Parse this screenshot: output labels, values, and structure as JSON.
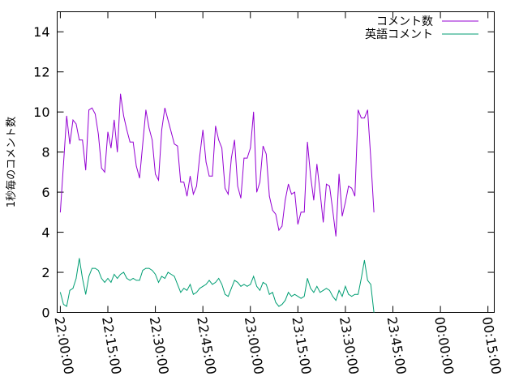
{
  "chart_data": {
    "type": "line",
    "ylabel": "1秒毎のコメント数",
    "xlabel": "",
    "ylim": [
      0,
      15
    ],
    "yticks": [
      0,
      2,
      4,
      6,
      8,
      10,
      12,
      14
    ],
    "ytick_labels": [
      "0",
      "2",
      "4",
      "6",
      "8",
      "10",
      "12",
      "14"
    ],
    "xticks": [
      0,
      15,
      30,
      45,
      60,
      75,
      90,
      105,
      120,
      135
    ],
    "xtick_labels": [
      "22:00:00",
      "22:15:00",
      "22:30:00",
      "22:45:00",
      "23:00:00",
      "23:15:00",
      "23:30:00",
      "23:45:00",
      "00:00:00",
      "00:15:00"
    ],
    "xlim": [
      -1,
      137
    ],
    "x_unit_note": "minutes",
    "legend_position": "top-right",
    "series": [
      {
        "name": "コメント数",
        "color": "#9400d3",
        "x_start": 0,
        "x_step": 1,
        "values": [
          5.0,
          7.4,
          9.8,
          8.4,
          9.6,
          9.4,
          8.6,
          8.6,
          7.1,
          10.1,
          10.2,
          9.9,
          8.9,
          7.2,
          7.0,
          9.0,
          8.2,
          9.6,
          8.0,
          10.9,
          9.8,
          9.1,
          8.5,
          8.5,
          7.3,
          6.7,
          8.4,
          10.1,
          9.2,
          8.6,
          6.9,
          6.6,
          9.1,
          10.2,
          9.6,
          9.0,
          8.4,
          8.3,
          6.5,
          6.5,
          5.8,
          6.8,
          5.9,
          6.3,
          7.8,
          9.1,
          7.5,
          6.8,
          6.8,
          9.3,
          8.6,
          8.2,
          6.2,
          5.9,
          7.7,
          8.6,
          6.3,
          5.7,
          7.7,
          7.7,
          8.2,
          10.0,
          6.0,
          6.5,
          8.3,
          7.9,
          5.8,
          5.1,
          4.9,
          4.1,
          4.3,
          5.6,
          6.4,
          5.9,
          6.0,
          4.4,
          5.0,
          5.0,
          8.5,
          6.8,
          5.6,
          7.4,
          6.0,
          4.5,
          6.4,
          6.3,
          5.1,
          3.8,
          6.9,
          4.8,
          5.5,
          6.3,
          6.2,
          5.8,
          10.1,
          9.7,
          9.7,
          10.1,
          7.7,
          5.0
        ]
      },
      {
        "name": "英語コメント",
        "color": "#009e73",
        "x_start": 0,
        "x_step": 1,
        "values": [
          1.0,
          0.4,
          0.3,
          1.1,
          1.2,
          1.7,
          2.7,
          1.7,
          0.9,
          1.8,
          2.2,
          2.2,
          2.1,
          1.7,
          1.5,
          1.7,
          1.5,
          1.9,
          1.7,
          1.9,
          2.0,
          1.7,
          1.6,
          1.7,
          1.6,
          1.6,
          2.1,
          2.2,
          2.2,
          2.1,
          1.9,
          1.5,
          1.8,
          1.7,
          2.0,
          1.9,
          1.8,
          1.4,
          1.0,
          1.2,
          1.1,
          1.4,
          0.9,
          1.0,
          1.2,
          1.3,
          1.4,
          1.6,
          1.4,
          1.5,
          1.7,
          1.4,
          0.9,
          0.8,
          1.2,
          1.6,
          1.5,
          1.3,
          1.4,
          1.3,
          1.4,
          1.8,
          1.3,
          1.1,
          1.5,
          1.4,
          0.9,
          1.0,
          0.5,
          0.3,
          0.4,
          0.6,
          1.0,
          0.8,
          0.9,
          0.8,
          0.7,
          0.8,
          1.7,
          1.2,
          1.0,
          1.3,
          1.0,
          1.1,
          1.2,
          1.1,
          0.8,
          0.6,
          1.1,
          0.8,
          1.3,
          0.9,
          0.8,
          0.9,
          0.9,
          1.7,
          2.6,
          1.6,
          1.4,
          0.0
        ]
      }
    ]
  }
}
